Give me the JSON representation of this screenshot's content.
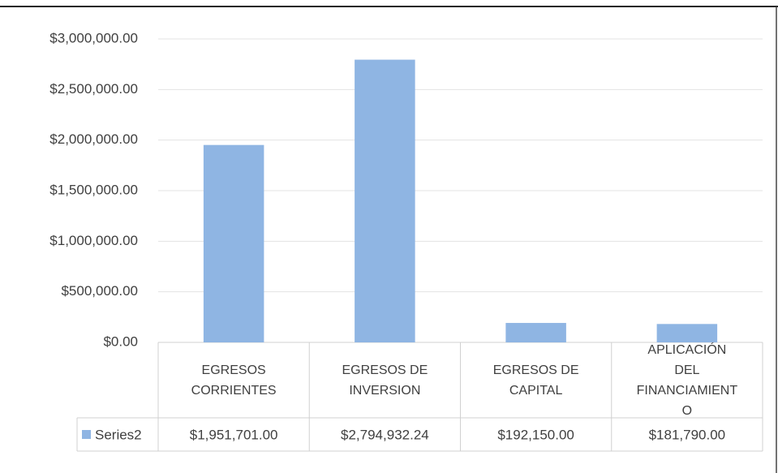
{
  "chart_data": {
    "type": "bar",
    "categories": [
      "EGRESOS CORRIENTES",
      "EGRESOS DE INVERSION",
      "EGRESOS DE CAPITAL",
      "APLICACIÓN DEL FINANCIAMIENTO"
    ],
    "series": [
      {
        "name": "Series2",
        "color": "#8fb5e3",
        "values": [
          1951701,
          2794932.24,
          192150,
          181790
        ],
        "value_labels": [
          "$1,951,701.00",
          "$2,794,932.24",
          "$192,150.00",
          "$181,790.00"
        ]
      }
    ],
    "ylim": [
      0,
      3000000
    ],
    "yticks": [
      {
        "value": 0,
        "label": "$0.00"
      },
      {
        "value": 500000,
        "label": "$500,000.00"
      },
      {
        "value": 1000000,
        "label": "$1,000,000.00"
      },
      {
        "value": 1500000,
        "label": "$1,500,000.00"
      },
      {
        "value": 2000000,
        "label": "$2,000,000.00"
      },
      {
        "value": 2500000,
        "label": "$2,500,000.00"
      },
      {
        "value": 3000000,
        "label": "$3,000,000.00"
      }
    ],
    "grid": true
  }
}
